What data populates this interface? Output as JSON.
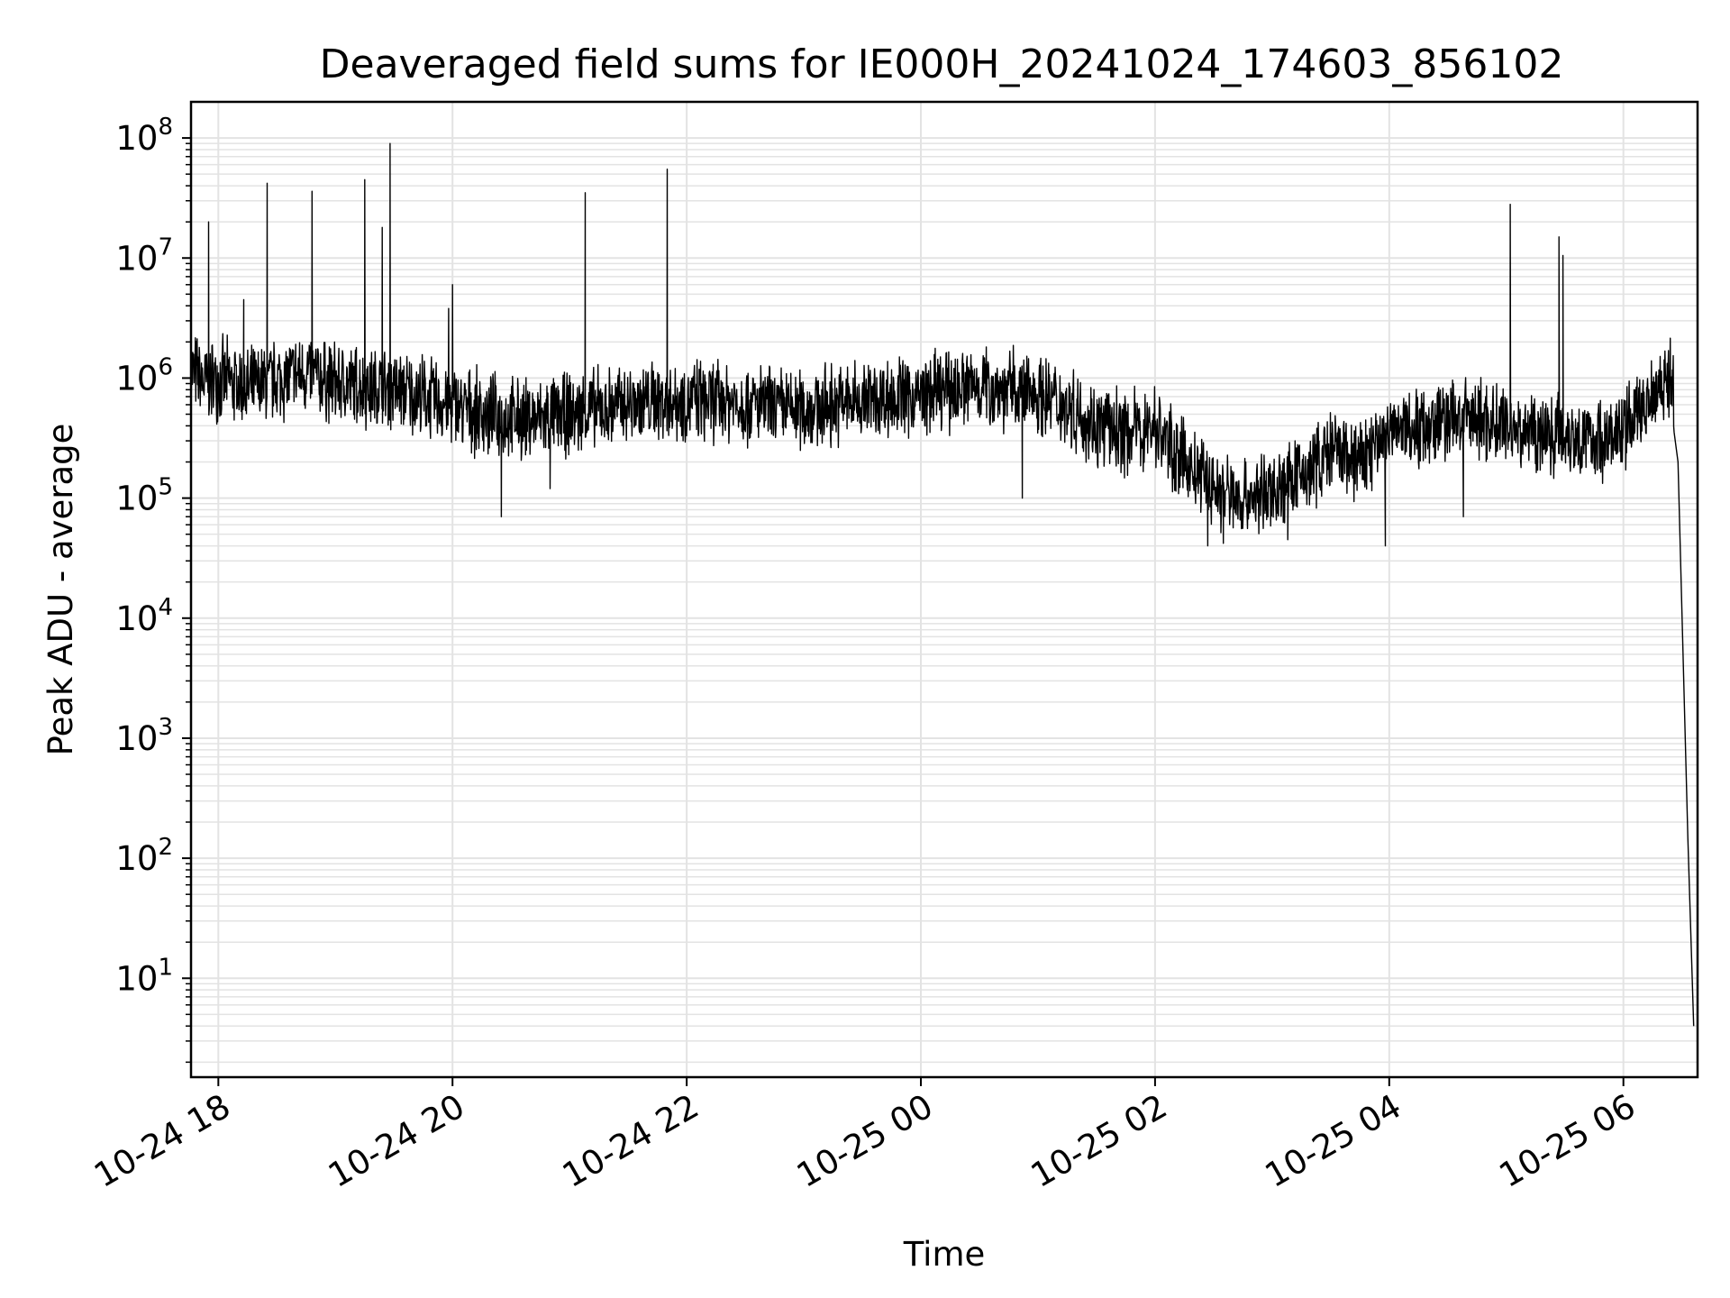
{
  "chart_data": {
    "type": "line",
    "title": "Deaveraged field sums for IE000H_20241024_174603_856102",
    "xlabel": "Time",
    "ylabel": "Peak ADU - average",
    "yscale": "log",
    "ylim": [
      1.5,
      200000000
    ],
    "xlim": [
      "2024-10-24 17:46",
      "2024-10-25 06:38"
    ],
    "grid": true,
    "line_color": "#000000",
    "grid_color": "#e3e3e3",
    "x_ticks": [
      {
        "value": "2024-10-24 18:00",
        "label": "10-24 18"
      },
      {
        "value": "2024-10-24 20:00",
        "label": "10-24 20"
      },
      {
        "value": "2024-10-24 22:00",
        "label": "10-24 22"
      },
      {
        "value": "2024-10-25 00:00",
        "label": "10-25 00"
      },
      {
        "value": "2024-10-25 02:00",
        "label": "10-25 02"
      },
      {
        "value": "2024-10-25 04:00",
        "label": "10-25 04"
      },
      {
        "value": "2024-10-25 06:00",
        "label": "10-25 06"
      }
    ],
    "y_ticks": [
      {
        "value": 10,
        "base": "10",
        "exp": "1"
      },
      {
        "value": 100,
        "base": "10",
        "exp": "2"
      },
      {
        "value": 1000,
        "base": "10",
        "exp": "3"
      },
      {
        "value": 10000,
        "base": "10",
        "exp": "4"
      },
      {
        "value": 100000,
        "base": "10",
        "exp": "5"
      },
      {
        "value": 1000000,
        "base": "10",
        "exp": "6"
      },
      {
        "value": 10000000,
        "base": "10",
        "exp": "7"
      },
      {
        "value": 100000000,
        "base": "10",
        "exp": "8"
      }
    ],
    "series": [
      {
        "points": [
          [
            "2024-10-24 17:46",
            1200000
          ],
          [
            "2024-10-24 17:52",
            900000
          ],
          [
            "2024-10-24 18:00",
            1000000
          ],
          [
            "2024-10-24 18:15",
            800000
          ],
          [
            "2024-10-24 18:30",
            950000
          ],
          [
            "2024-10-24 18:45",
            1100000
          ],
          [
            "2024-10-24 19:00",
            900000
          ],
          [
            "2024-10-24 19:15",
            850000
          ],
          [
            "2024-10-24 19:30",
            800000
          ],
          [
            "2024-10-24 19:45",
            700000
          ],
          [
            "2024-10-24 20:00",
            600000
          ],
          [
            "2024-10-24 20:15",
            500000
          ],
          [
            "2024-10-24 20:30",
            450000
          ],
          [
            "2024-10-24 20:45",
            450000
          ],
          [
            "2024-10-24 21:00",
            500000
          ],
          [
            "2024-10-24 21:15",
            550000
          ],
          [
            "2024-10-24 21:30",
            600000
          ],
          [
            "2024-10-24 21:45",
            650000
          ],
          [
            "2024-10-24 22:00",
            650000
          ],
          [
            "2024-10-24 22:15",
            650000
          ],
          [
            "2024-10-24 22:30",
            620000
          ],
          [
            "2024-10-24 22:45",
            560000
          ],
          [
            "2024-10-24 23:00",
            550000
          ],
          [
            "2024-10-24 23:15",
            600000
          ],
          [
            "2024-10-24 23:30",
            650000
          ],
          [
            "2024-10-24 23:45",
            700000
          ],
          [
            "2024-10-25 00:00",
            700000
          ],
          [
            "2024-10-25 00:15",
            800000
          ],
          [
            "2024-10-25 00:30",
            900000
          ],
          [
            "2024-10-25 00:45",
            800000
          ],
          [
            "2024-10-25 01:00",
            750000
          ],
          [
            "2024-10-25 01:15",
            600000
          ],
          [
            "2024-10-25 01:30",
            400000
          ],
          [
            "2024-10-25 01:45",
            350000
          ],
          [
            "2024-10-25 02:00",
            400000
          ],
          [
            "2024-10-25 02:15",
            200000
          ],
          [
            "2024-10-25 02:30",
            120000
          ],
          [
            "2024-10-25 02:45",
            100000
          ],
          [
            "2024-10-25 03:00",
            110000
          ],
          [
            "2024-10-25 03:15",
            150000
          ],
          [
            "2024-10-25 03:30",
            250000
          ],
          [
            "2024-10-25 03:45",
            200000
          ],
          [
            "2024-10-25 04:00",
            350000
          ],
          [
            "2024-10-25 04:15",
            400000
          ],
          [
            "2024-10-25 04:30",
            450000
          ],
          [
            "2024-10-25 04:45",
            450000
          ],
          [
            "2024-10-25 05:00",
            400000
          ],
          [
            "2024-10-25 05:15",
            350000
          ],
          [
            "2024-10-25 05:30",
            350000
          ],
          [
            "2024-10-25 05:45",
            300000
          ],
          [
            "2024-10-25 06:00",
            350000
          ],
          [
            "2024-10-25 06:10",
            600000
          ],
          [
            "2024-10-25 06:20",
            1000000
          ],
          [
            "2024-10-25 06:25",
            900000
          ],
          [
            "2024-10-25 06:28",
            200000
          ],
          [
            "2024-10-25 06:33",
            150
          ],
          [
            "2024-10-25 06:36",
            4
          ]
        ],
        "spikes": [
          [
            "2024-10-24 17:55",
            20000000
          ],
          [
            "2024-10-24 18:13",
            4500000
          ],
          [
            "2024-10-24 18:25",
            42000000
          ],
          [
            "2024-10-24 18:48",
            36000000
          ],
          [
            "2024-10-24 19:15",
            45000000
          ],
          [
            "2024-10-24 19:24",
            18000000
          ],
          [
            "2024-10-24 19:28",
            90000000
          ],
          [
            "2024-10-24 19:58",
            3800000
          ],
          [
            "2024-10-24 20:00",
            6000000
          ],
          [
            "2024-10-24 21:08",
            35000000
          ],
          [
            "2024-10-24 21:50",
            55000000
          ],
          [
            "2024-10-25 05:02",
            28000000
          ],
          [
            "2024-10-25 05:27",
            15000000
          ],
          [
            "2024-10-25 05:29",
            10500000
          ]
        ],
        "dips": [
          [
            "2024-10-24 20:25",
            70000
          ],
          [
            "2024-10-24 20:50",
            120000
          ],
          [
            "2024-10-25 00:52",
            100000
          ],
          [
            "2024-10-25 02:27",
            40000
          ],
          [
            "2024-10-25 02:35",
            42000
          ],
          [
            "2024-10-25 03:08",
            45000
          ],
          [
            "2024-10-25 03:58",
            40000
          ],
          [
            "2024-10-25 04:38",
            70000
          ]
        ]
      }
    ]
  }
}
